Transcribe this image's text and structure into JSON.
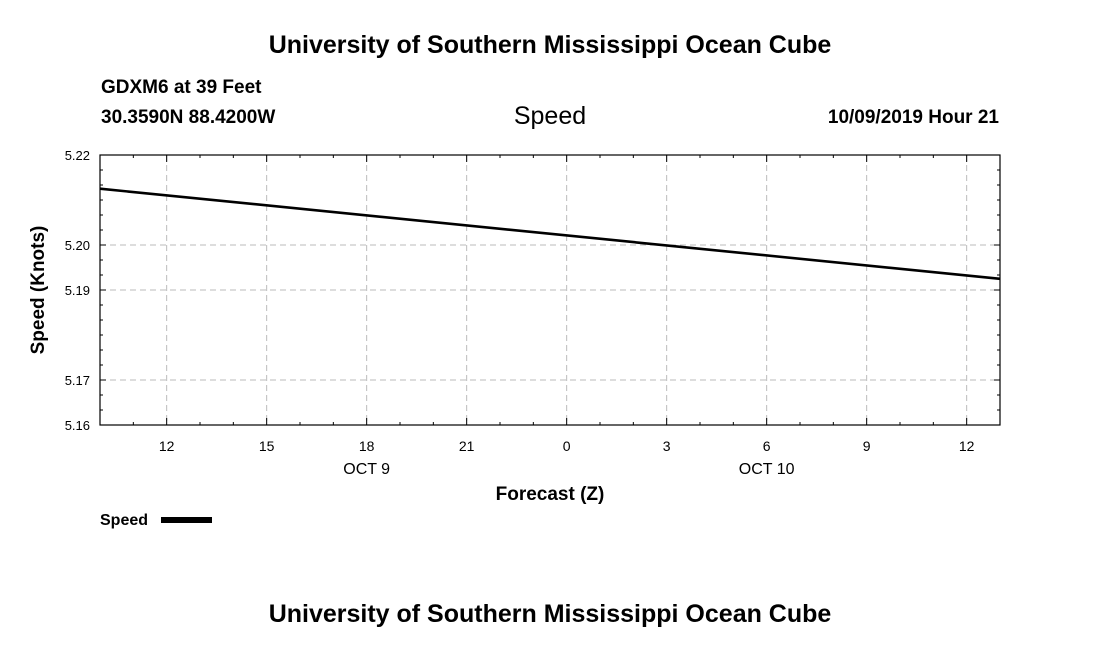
{
  "header": {
    "title": "University of Southern Mississippi Ocean Cube",
    "station": "GDXM6 at 39 Feet",
    "location": "30.3590N 88.4200W",
    "datetime": "10/09/2019 Hour 21"
  },
  "footer": {
    "title": "University of Southern Mississippi Ocean Cube"
  },
  "legend": {
    "label": "Speed"
  },
  "chart_data": {
    "type": "line",
    "title": "Speed",
    "xlabel": "Forecast (Z)",
    "ylabel": "Speed (Knots)",
    "x_unit": "hours since OCT 9 00Z",
    "xlim": [
      10,
      37
    ],
    "ylim": [
      5.16,
      5.22
    ],
    "yticks": [
      5.16,
      5.17,
      5.19,
      5.2,
      5.22
    ],
    "ytick_labels": [
      "5.16",
      "5.17",
      "5.19",
      "5.20",
      "5.22"
    ],
    "xticks": [
      12,
      15,
      18,
      21,
      24,
      27,
      30,
      33,
      36
    ],
    "xtick_labels": [
      "12",
      "15",
      "18",
      "21",
      "0",
      "3",
      "6",
      "9",
      "12"
    ],
    "date_labels": [
      {
        "x": 18,
        "label": "OCT 9"
      },
      {
        "x": 30,
        "label": "OCT 10"
      }
    ],
    "grid": true,
    "series": [
      {
        "name": "Speed",
        "color": "#000000",
        "x": [
          10,
          37
        ],
        "values": [
          5.2125,
          5.1925
        ]
      }
    ]
  }
}
